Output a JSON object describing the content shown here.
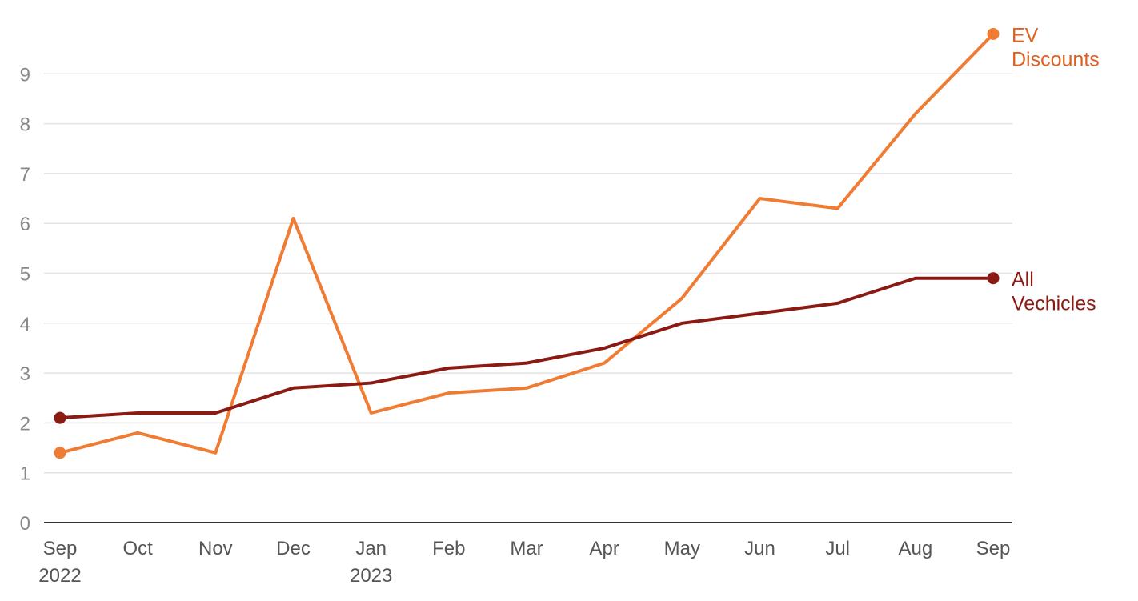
{
  "chart_data": {
    "type": "line",
    "title": "",
    "xlabel": "",
    "ylabel": "",
    "categories": [
      "Sep",
      "Oct",
      "Nov",
      "Dec",
      "Jan",
      "Feb",
      "Mar",
      "Apr",
      "May",
      "Jun",
      "Jul",
      "Aug",
      "Sep"
    ],
    "category_sublabels": [
      "2022",
      "",
      "",
      "",
      "2023",
      "",
      "",
      "",
      "",
      "",
      "",
      "",
      ""
    ],
    "ylim": [
      0,
      10
    ],
    "yticks": [
      0,
      1,
      2,
      3,
      4,
      5,
      6,
      7,
      8,
      9
    ],
    "grid": true,
    "series": [
      {
        "name": "EV Discounts",
        "label_lines": [
          "EV",
          "Discounts"
        ],
        "color": "#f07b33",
        "label_color": "#e06020",
        "values": [
          1.4,
          1.8,
          1.4,
          6.1,
          2.2,
          2.6,
          2.7,
          3.2,
          4.5,
          6.5,
          6.3,
          8.2,
          9.8
        ]
      },
      {
        "name": "All Vechicles",
        "label_lines": [
          "All",
          "Vechicles"
        ],
        "color": "#8b1a12",
        "label_color": "#8b1a12",
        "values": [
          2.1,
          2.2,
          2.2,
          2.7,
          2.8,
          3.1,
          3.2,
          3.5,
          4.0,
          4.2,
          4.4,
          4.9,
          4.9
        ]
      }
    ]
  },
  "colors": {
    "grid": "#e3e3e3",
    "axis": "#333333",
    "tick_text": "#555555",
    "ytick_text": "#888888"
  }
}
